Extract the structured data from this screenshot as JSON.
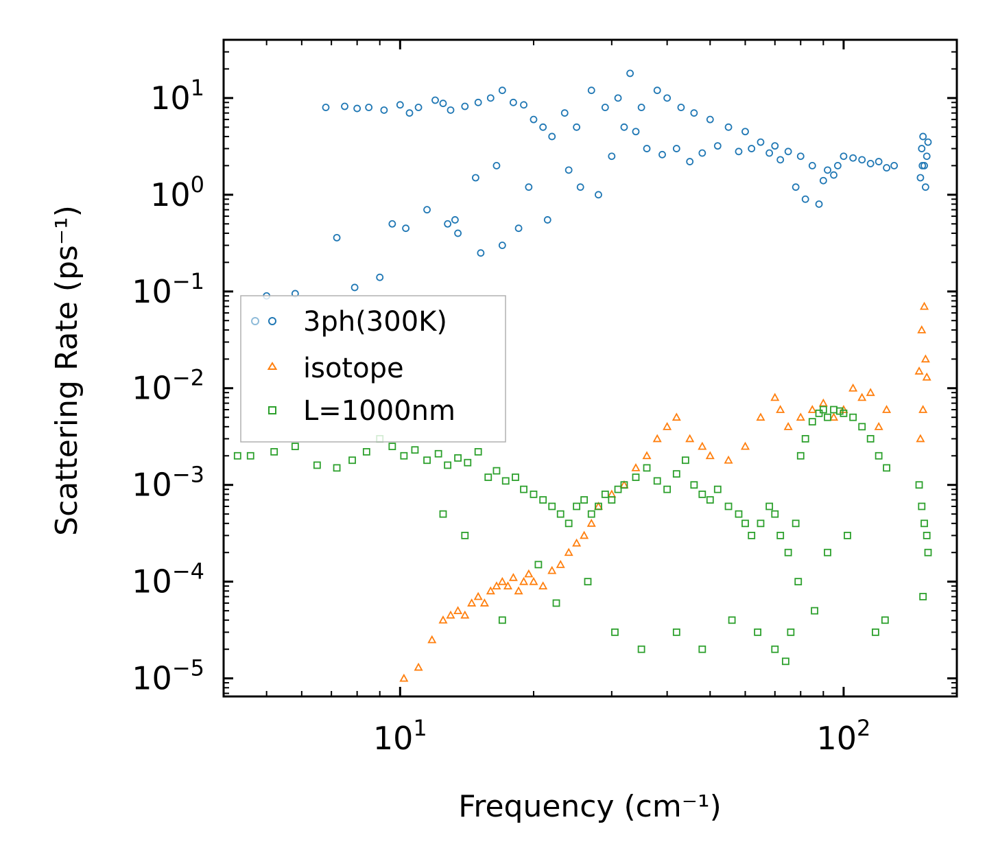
{
  "chart_data": {
    "type": "scatter",
    "title": "",
    "xlabel": "Frequency (cm⁻¹)",
    "ylabel": "Scattering Rate (ps⁻¹)",
    "xscale": "log",
    "yscale": "log",
    "xlim": [
      4.0,
      180.0
    ],
    "ylim": [
      6.5e-06,
      40
    ],
    "x_ticks": [
      {
        "value": 10,
        "base": "10",
        "exp": "1"
      },
      {
        "value": 100,
        "base": "10",
        "exp": "2"
      }
    ],
    "y_ticks": [
      {
        "value": 1e-05,
        "base": "10",
        "exp": "−5"
      },
      {
        "value": 0.0001,
        "base": "10",
        "exp": "−4"
      },
      {
        "value": 0.001,
        "base": "10",
        "exp": "−3"
      },
      {
        "value": 0.01,
        "base": "10",
        "exp": "−2"
      },
      {
        "value": 0.1,
        "base": "10",
        "exp": "−1"
      },
      {
        "value": 1,
        "base": "10",
        "exp": "0"
      },
      {
        "value": 10,
        "base": "10",
        "exp": "1"
      }
    ],
    "legend": {
      "placement": "center-left"
    },
    "series": [
      {
        "name": "3ph(300K)",
        "marker": "circle",
        "color": "#1f77b4",
        "x": [
          6.8,
          7.5,
          8.0,
          8.5,
          9.2,
          10.0,
          10.5,
          11.0,
          12.0,
          12.5,
          13.0,
          14.0,
          15.0,
          16.0,
          17.0,
          18.0,
          19.0,
          20.0,
          21.0,
          22.0,
          23.5,
          25.0,
          27.0,
          29.0,
          31.0,
          33.0,
          35.0,
          38.0,
          40.0,
          43.0,
          46.0,
          50.0,
          55.0,
          60.0,
          65.0,
          70.0,
          75.0,
          80.0,
          85.0,
          90.0,
          95.0,
          100.0,
          110.0,
          120.0,
          130.0,
          150.0,
          152.0,
          154.0,
          5.0,
          5.8,
          7.2,
          7.9,
          9.0,
          9.6,
          10.3,
          11.5,
          12.8,
          13.5,
          15.2,
          17.0,
          18.5,
          21.5,
          25.5,
          13.3,
          14.8,
          16.5,
          19.5,
          24.0,
          28.0,
          30.0,
          32.0,
          34.0,
          36.0,
          39.0,
          42.0,
          45.0,
          48.0,
          52.0,
          58.0,
          62.0,
          68.0,
          72.0,
          78.0,
          82.0,
          88.0,
          92.0,
          97.0,
          105.0,
          115.0,
          125.0,
          149.0,
          151.0,
          153.0,
          155.0,
          150.5
        ],
        "y": [
          8.0,
          8.2,
          7.8,
          8.0,
          7.5,
          8.5,
          7.0,
          8.0,
          9.5,
          8.8,
          7.5,
          8.2,
          9.0,
          10.0,
          12.0,
          9.0,
          8.5,
          6.0,
          5.0,
          4.0,
          7.0,
          5.0,
          12.0,
          8.0,
          10.0,
          18.0,
          8.0,
          12.0,
          10.0,
          8.0,
          7.0,
          6.0,
          5.0,
          4.5,
          3.5,
          3.2,
          2.8,
          2.5,
          2.0,
          1.4,
          1.6,
          2.5,
          2.3,
          2.2,
          2.0,
          3.0,
          2.0,
          2.5,
          0.09,
          0.095,
          0.36,
          0.11,
          0.14,
          0.5,
          0.45,
          0.7,
          0.5,
          0.4,
          0.25,
          0.3,
          0.45,
          0.55,
          1.2,
          0.55,
          1.5,
          2.0,
          1.2,
          1.8,
          1.0,
          2.5,
          5.0,
          4.5,
          3.0,
          2.6,
          3.0,
          2.2,
          2.7,
          3.2,
          2.8,
          3.0,
          2.7,
          2.3,
          1.2,
          0.9,
          0.8,
          1.8,
          2.0,
          2.4,
          2.1,
          1.9,
          1.5,
          4.0,
          1.2,
          3.5,
          2.0
        ]
      },
      {
        "name": "isotope",
        "marker": "triangle",
        "color": "#ff7f0e",
        "x": [
          10.2,
          11.0,
          11.8,
          12.5,
          13.0,
          13.5,
          14.0,
          14.5,
          15.0,
          15.5,
          16.0,
          16.5,
          17.0,
          17.5,
          18.0,
          18.5,
          19.0,
          19.5,
          20.0,
          21.0,
          22.0,
          23.0,
          24.0,
          25.0,
          26.0,
          27.0,
          28.0,
          30.0,
          32.0,
          34.0,
          36.0,
          38.0,
          40.0,
          42.0,
          45.0,
          48.0,
          50.0,
          55.0,
          60.0,
          65.0,
          70.0,
          72.0,
          75.0,
          80.0,
          85.0,
          90.0,
          95.0,
          100.0,
          105.0,
          110.0,
          115.0,
          120.0,
          125.0,
          148.0,
          150.0,
          152.0,
          153.0,
          154.0,
          149.0,
          151.0
        ],
        "y": [
          1e-05,
          1.3e-05,
          2.5e-05,
          4e-05,
          4.5e-05,
          5e-05,
          4.5e-05,
          6e-05,
          7e-05,
          6e-05,
          8e-05,
          9e-05,
          0.0001,
          9e-05,
          0.00011,
          8e-05,
          0.0001,
          0.00012,
          0.0001,
          9e-05,
          0.00013,
          0.00015,
          0.0002,
          0.00025,
          0.0003,
          0.0004,
          0.0006,
          0.0008,
          0.001,
          0.0015,
          0.002,
          0.003,
          0.004,
          0.005,
          0.003,
          0.0025,
          0.002,
          0.0018,
          0.0025,
          0.005,
          0.008,
          0.006,
          0.004,
          0.005,
          0.006,
          0.007,
          0.005,
          0.006,
          0.01,
          0.008,
          0.009,
          0.004,
          0.006,
          0.015,
          0.04,
          0.07,
          0.02,
          0.013,
          0.003,
          0.006
        ]
      },
      {
        "name": "L=1000nm",
        "marker": "square",
        "color": "#2ca02c",
        "x": [
          4.3,
          4.6,
          5.2,
          5.8,
          6.5,
          7.2,
          7.8,
          8.4,
          9.0,
          9.6,
          10.2,
          10.8,
          11.5,
          12.2,
          12.8,
          13.5,
          14.2,
          15.0,
          15.8,
          16.5,
          17.3,
          18.2,
          19.0,
          20.0,
          21.0,
          22.0,
          23.0,
          24.0,
          25.0,
          26.0,
          27.0,
          28.0,
          29.0,
          30.0,
          31.0,
          32.0,
          34.0,
          36.0,
          38.0,
          40.0,
          42.0,
          44.0,
          46.0,
          48.0,
          50.0,
          52.0,
          55.0,
          58.0,
          60.0,
          62.0,
          65.0,
          68.0,
          70.0,
          72.0,
          75.0,
          78.0,
          80.0,
          82.0,
          85.0,
          88.0,
          90.0,
          92.0,
          95.0,
          98.0,
          100.0,
          105.0,
          110.0,
          115.0,
          120.0,
          125.0,
          148.0,
          150.0,
          152.0,
          154.0,
          155.0,
          12.5,
          14.0,
          17.0,
          20.5,
          22.5,
          26.5,
          30.5,
          35.0,
          42.0,
          48.0,
          56.0,
          64.0,
          70.0,
          74.0,
          76.0,
          79.0,
          86.0,
          92.0,
          102.0,
          118.0,
          124.0,
          151.0
        ],
        "y": [
          0.002,
          0.002,
          0.0022,
          0.0025,
          0.0016,
          0.0015,
          0.0018,
          0.0022,
          0.003,
          0.0025,
          0.002,
          0.0023,
          0.0018,
          0.0021,
          0.0016,
          0.0019,
          0.0017,
          0.0022,
          0.0012,
          0.0014,
          0.0011,
          0.0012,
          0.0009,
          0.0008,
          0.0007,
          0.0006,
          0.0005,
          0.0004,
          0.0006,
          0.0007,
          0.0005,
          0.0006,
          0.0008,
          0.0007,
          0.0009,
          0.001,
          0.0012,
          0.0015,
          0.0011,
          0.0009,
          0.0013,
          0.0018,
          0.001,
          0.0008,
          0.0007,
          0.0009,
          0.0006,
          0.0005,
          0.0004,
          0.0003,
          0.0004,
          0.0006,
          0.0005,
          0.0003,
          0.0002,
          0.0004,
          0.002,
          0.003,
          0.0045,
          0.0055,
          0.006,
          0.005,
          0.006,
          0.0058,
          0.0055,
          0.005,
          0.004,
          0.003,
          0.002,
          0.0015,
          0.001,
          0.0006,
          0.0004,
          0.0003,
          0.0002,
          0.0005,
          0.0003,
          4e-05,
          0.00015,
          6e-05,
          0.0001,
          3e-05,
          2e-05,
          3e-05,
          2e-05,
          4e-05,
          3e-05,
          2e-05,
          1.5e-05,
          3e-05,
          0.0001,
          5e-05,
          0.0002,
          0.0003,
          3e-05,
          4e-05,
          7e-05
        ]
      }
    ]
  }
}
